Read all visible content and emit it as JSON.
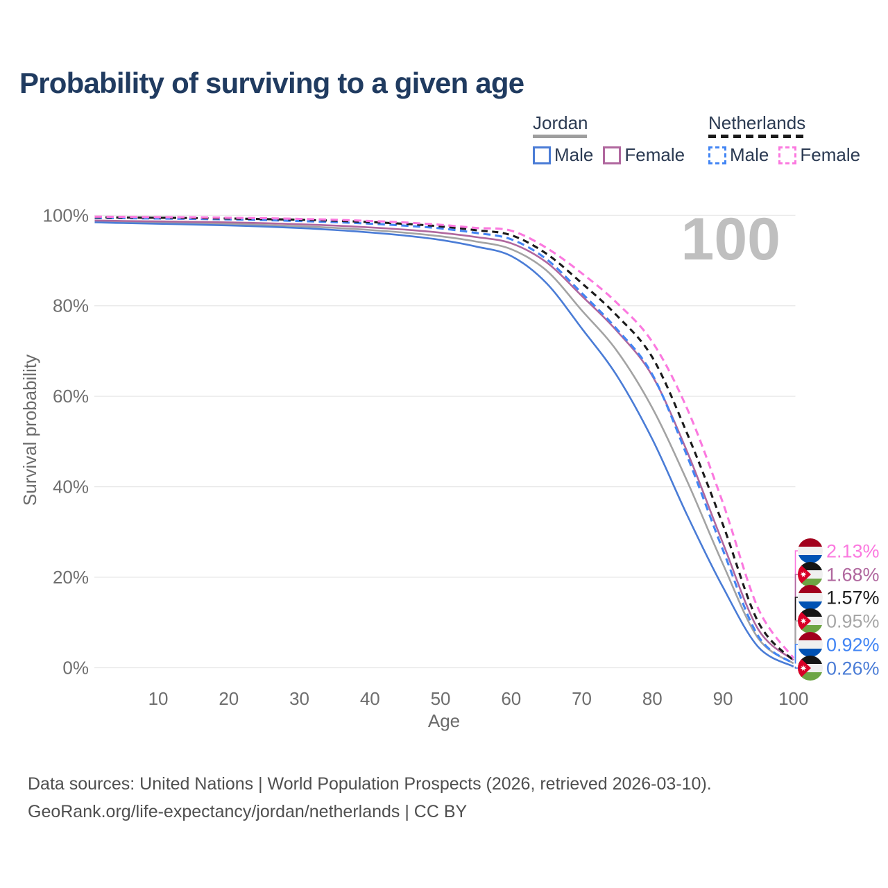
{
  "title": "Probability of surviving to a given age",
  "watermark": "100",
  "legend": {
    "groups": [
      {
        "name": "Jordan",
        "line_style": "solid",
        "underline_color": "#9e9e9e",
        "items": [
          {
            "label": "Male",
            "color": "#4a7cd6",
            "dashed": false
          },
          {
            "label": "Female",
            "color": "#b0679e",
            "dashed": false
          }
        ]
      },
      {
        "name": "Netherlands",
        "line_style": "dashed",
        "underline_color": "#1a1a1a",
        "items": [
          {
            "label": "Male",
            "color": "#4285f4",
            "dashed": true
          },
          {
            "label": "Female",
            "color": "#fb79df",
            "dashed": true
          }
        ]
      }
    ]
  },
  "chart_data": {
    "type": "line",
    "title": "Probability of surviving to a given age",
    "xlabel": "Age",
    "ylabel": "Survival probability",
    "xlim": [
      1,
      100
    ],
    "ylim": [
      0,
      100
    ],
    "x_ticks": [
      10,
      20,
      30,
      40,
      50,
      60,
      70,
      80,
      90,
      100
    ],
    "y_ticks": [
      "0%",
      "20%",
      "40%",
      "60%",
      "80%",
      "100%"
    ],
    "y_tick_values": [
      0,
      20,
      40,
      60,
      80,
      100
    ],
    "grid": true,
    "x": [
      1,
      5,
      10,
      15,
      20,
      25,
      30,
      35,
      40,
      45,
      50,
      55,
      60,
      65,
      70,
      75,
      80,
      85,
      90,
      95,
      100
    ],
    "series": [
      {
        "id": "jordan-both",
        "country": "Jordan",
        "sex": "both",
        "color": "#a3a3a3",
        "dash": "solid",
        "values": [
          98.65,
          98.5,
          98.38,
          98.24,
          98.08,
          97.86,
          97.58,
          97.22,
          96.75,
          96.15,
          95.35,
          94.2,
          92.5,
          87.8,
          79.0,
          70.0,
          57.4,
          41.0,
          22.9,
          6.5,
          0.95
        ],
        "end_label": "0.95%"
      },
      {
        "id": "jordan-male",
        "country": "Jordan",
        "sex": "male",
        "color": "#4a7cd6",
        "dash": "solid",
        "values": [
          98.45,
          98.28,
          98.12,
          97.95,
          97.75,
          97.5,
          97.18,
          96.75,
          96.2,
          95.5,
          94.55,
          93.1,
          91.0,
          85.0,
          75.0,
          64.5,
          50.5,
          33.5,
          17.8,
          4.6,
          0.26
        ],
        "end_label": "0.26%"
      },
      {
        "id": "jordan-female",
        "country": "Jordan",
        "sex": "female",
        "color": "#b0679e",
        "dash": "solid",
        "values": [
          98.85,
          98.75,
          98.65,
          98.55,
          98.42,
          98.25,
          98.02,
          97.72,
          97.32,
          96.82,
          96.15,
          95.2,
          93.8,
          89.6,
          82.2,
          74.4,
          64.5,
          47.5,
          27.5,
          8.5,
          1.68
        ],
        "end_label": "1.68%"
      },
      {
        "id": "netherlands-male",
        "country": "Netherlands",
        "sex": "male",
        "color": "#4285f4",
        "dash": "dashed",
        "values": [
          99.4,
          99.35,
          99.28,
          99.2,
          99.08,
          98.92,
          98.72,
          98.48,
          98.15,
          97.7,
          97.1,
          96.1,
          94.7,
          90.3,
          82.8,
          74.8,
          64.8,
          46.5,
          26.0,
          7.0,
          0.92
        ],
        "end_label": "0.92%"
      },
      {
        "id": "netherlands-both",
        "country": "Netherlands",
        "sex": "both",
        "color": "#1a1a1a",
        "dash": "dashed",
        "values": [
          99.55,
          99.5,
          99.45,
          99.38,
          99.28,
          99.15,
          99.0,
          98.8,
          98.5,
          98.1,
          97.55,
          96.7,
          95.6,
          91.5,
          85.0,
          77.8,
          68.6,
          51.5,
          31.6,
          10.1,
          1.57
        ],
        "end_label": "1.57%"
      },
      {
        "id": "netherlands-female",
        "country": "Netherlands",
        "sex": "female",
        "color": "#fb79df",
        "dash": "dashed",
        "values": [
          99.7,
          99.65,
          99.6,
          99.55,
          99.45,
          99.35,
          99.2,
          99.0,
          98.75,
          98.4,
          97.9,
          97.2,
          96.6,
          92.8,
          87.2,
          80.6,
          72.0,
          57.0,
          36.4,
          13.1,
          2.13
        ],
        "end_label": "2.13%"
      }
    ],
    "legend_position": "top-right",
    "end_labels": [
      {
        "value": "2.13%",
        "flag": "netherlands",
        "series": "netherlands-female",
        "color": "#fb79df"
      },
      {
        "value": "1.68%",
        "flag": "jordan",
        "series": "jordan-female",
        "color": "#b0679e"
      },
      {
        "value": "1.57%",
        "flag": "netherlands",
        "series": "netherlands-both",
        "color": "#1a1a1a"
      },
      {
        "value": "0.95%",
        "flag": "jordan",
        "series": "jordan-both",
        "color": "#a6a6a6"
      },
      {
        "value": "0.92%",
        "flag": "netherlands",
        "series": "netherlands-male",
        "color": "#4285f4"
      },
      {
        "value": "0.26%",
        "flag": "jordan",
        "series": "jordan-male",
        "color": "#4a7cd6"
      }
    ]
  },
  "flag_colors": {
    "netherlands": {
      "top": "#A2001D",
      "middle": "#F0F0F0",
      "bottom": "#0052B4"
    },
    "jordan": {
      "top": "#151515",
      "middle": "#F0F0F0",
      "bottom": "#6DA544",
      "chevron": "#D80027",
      "star": "#ffffff"
    }
  },
  "footer": {
    "line1": "Data sources: United Nations | World Population Prospects (2026, retrieved 2026-03-10).",
    "line2": "GeoRank.org/life-expectancy/jordan/netherlands | CC BY"
  }
}
